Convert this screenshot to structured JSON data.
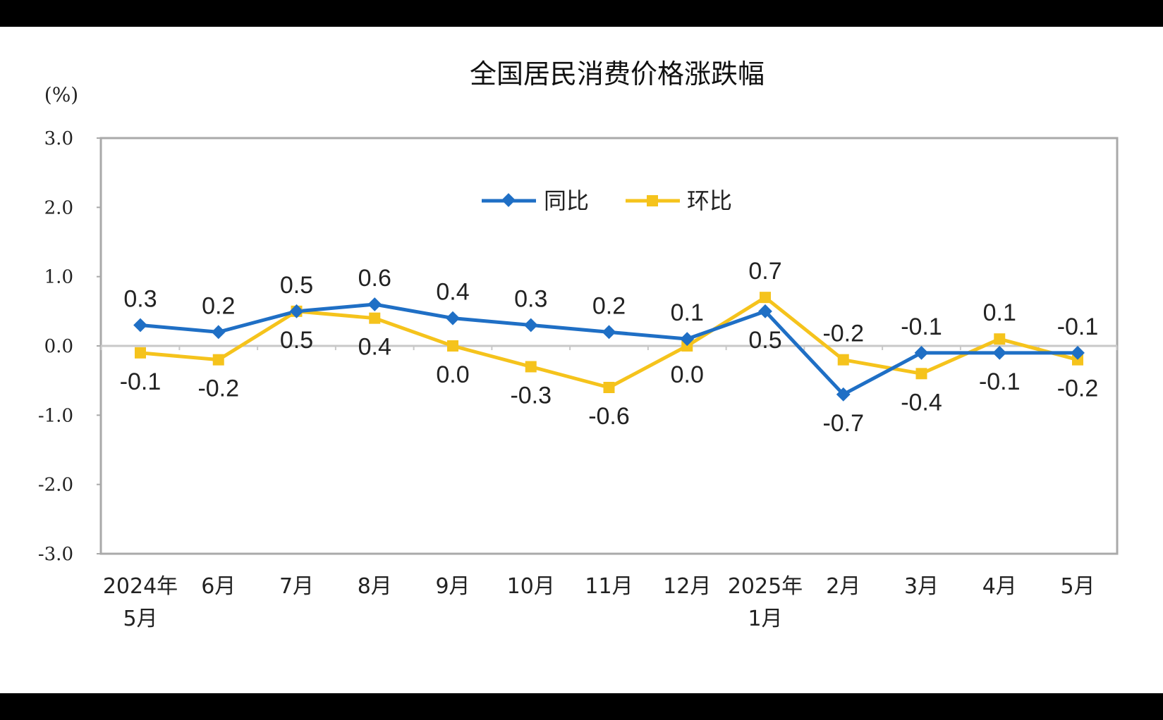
{
  "colors": {
    "yoy": "#1f6fc5",
    "mom": "#f5c31c",
    "axis": "#a9a9a9",
    "zero_line": "#c8c8c8"
  },
  "chart_data": {
    "type": "line",
    "title": "全国居民消费价格涨跌幅",
    "yunit": "(%)",
    "ylim": [
      -3.0,
      3.0
    ],
    "yticks": [
      "3.0",
      "2.0",
      "1.0",
      "0.0",
      "-1.0",
      "-2.0",
      "-3.0"
    ],
    "ytick_values": [
      3,
      2,
      1,
      0,
      -1,
      -2,
      -3
    ],
    "grid": false,
    "legend_position": "top-center",
    "categories": [
      [
        "2024年",
        "5月"
      ],
      [
        "6月"
      ],
      [
        "7月"
      ],
      [
        "8月"
      ],
      [
        "9月"
      ],
      [
        "10月"
      ],
      [
        "11月"
      ],
      [
        "12月"
      ],
      [
        "2025年",
        "1月"
      ],
      [
        "2月"
      ],
      [
        "3月"
      ],
      [
        "4月"
      ],
      [
        "5月"
      ]
    ],
    "series": [
      {
        "name": "同比",
        "marker": "diamond",
        "values": [
          0.3,
          0.2,
          0.5,
          0.6,
          0.4,
          0.3,
          0.2,
          0.1,
          0.5,
          -0.7,
          -0.1,
          -0.1,
          -0.1
        ],
        "labels": [
          "0.3",
          "0.2",
          "0.5",
          "0.6",
          "0.4",
          "0.3",
          "0.2",
          "0.1",
          "0.5",
          "-0.7",
          "-0.1",
          "-0.1",
          "-0.1"
        ]
      },
      {
        "name": "环比",
        "marker": "square",
        "values": [
          -0.1,
          -0.2,
          0.5,
          0.4,
          0.0,
          -0.3,
          -0.6,
          0.0,
          0.7,
          -0.2,
          -0.4,
          0.1,
          -0.2
        ],
        "labels": [
          "-0.1",
          "-0.2",
          "0.5",
          "0.4",
          "0.0",
          "-0.3",
          "-0.6",
          "0.0",
          "0.7",
          "-0.2",
          "-0.4",
          "0.1",
          "-0.2"
        ]
      }
    ]
  }
}
